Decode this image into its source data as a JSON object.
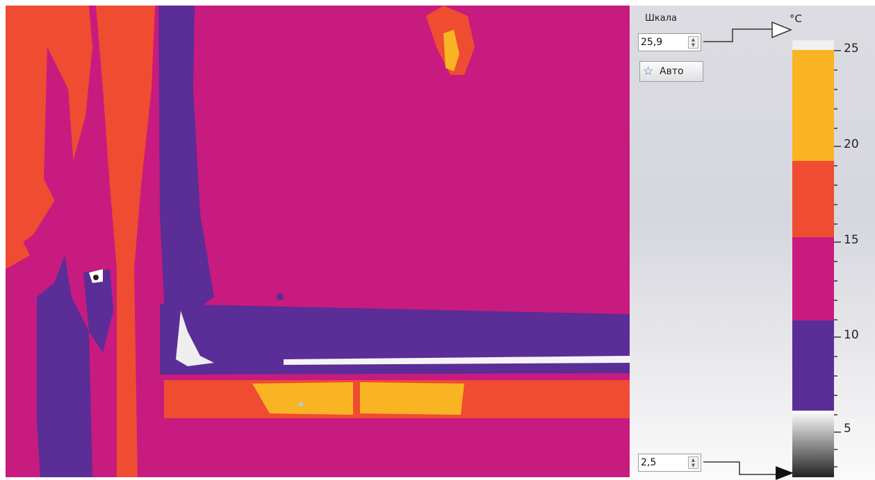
{
  "scale_panel": {
    "title": "Шкала",
    "max_value": "25,9",
    "min_value": "2,5",
    "auto_button_label": "Авто",
    "unit": "°C"
  },
  "colorbar": {
    "ticks": [
      "25",
      "20",
      "15",
      "10",
      "5"
    ],
    "palette": {
      "yellow": "#f9b423",
      "orange": "#ef4c31",
      "magenta": "#c71b7f",
      "purple": "#5b2d96",
      "gray_top": "#ffffff",
      "gray_bottom": "#222222"
    }
  }
}
